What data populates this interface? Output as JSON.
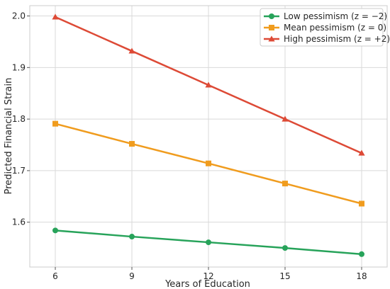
{
  "chart_data": {
    "type": "line",
    "title": "",
    "xlabel": "Years of Education",
    "ylabel": "Predicted Financial Strain",
    "x": [
      6,
      9,
      12,
      15,
      18
    ],
    "xlim": [
      5,
      19
    ],
    "ylim": [
      1.513,
      2.02
    ],
    "xticks": [
      6,
      9,
      12,
      15,
      18
    ],
    "yticks": [
      1.6,
      1.7,
      1.8,
      1.9,
      2.0
    ],
    "ytick_labels": [
      "1.6",
      "1.7",
      "1.8",
      "1.9",
      "2.0"
    ],
    "grid": true,
    "legend_position": "top-right",
    "series": [
      {
        "name": "Low pessimism (z = −2)",
        "values": [
          1.584,
          1.572,
          1.561,
          1.55,
          1.538
        ],
        "color": "#27a35a",
        "marker": "circle"
      },
      {
        "name": "Mean pessimism (z = 0)",
        "values": [
          1.791,
          1.752,
          1.714,
          1.675,
          1.636
        ],
        "color": "#f09c1e",
        "marker": "square"
      },
      {
        "name": "High pessimism (z = +2)",
        "values": [
          1.998,
          1.932,
          1.866,
          1.8,
          1.734
        ],
        "color": "#dd4a36",
        "marker": "triangle"
      }
    ]
  }
}
